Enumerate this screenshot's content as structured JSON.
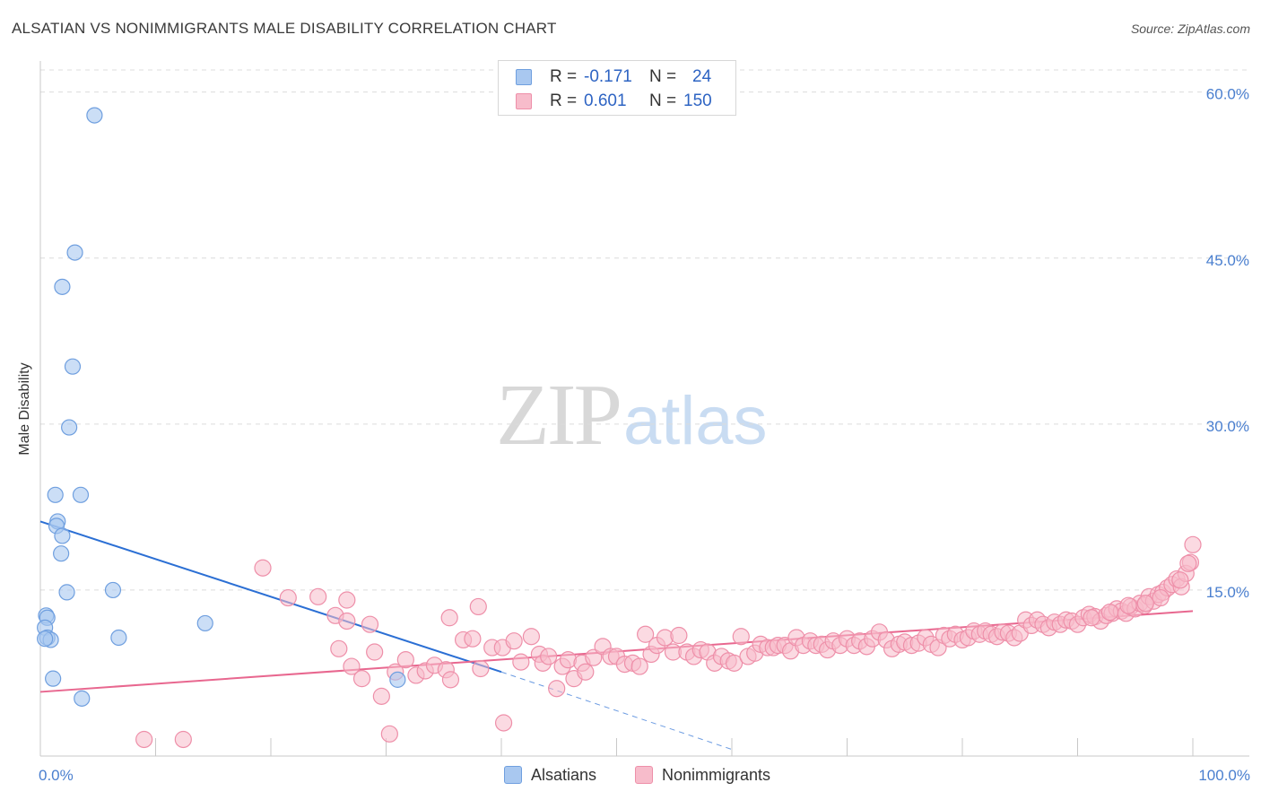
{
  "header": {
    "title": "ALSATIAN VS NONIMMIGRANTS MALE DISABILITY CORRELATION CHART",
    "source": "Source: ZipAtlas.com"
  },
  "watermark": {
    "zip": "ZIP",
    "atlas": "atlas"
  },
  "legend": {
    "rows": [
      {
        "r_label": "R =",
        "r_value": "-0.171",
        "n_label": "N =",
        "n_value": "24"
      },
      {
        "r_label": "R =",
        "r_value": "0.601",
        "n_label": "N =",
        "n_value": "150"
      }
    ],
    "bottom": [
      "Alsatians",
      "Nonimmigrants"
    ]
  },
  "colors": {
    "alsatian_fill": "#a9c8f0",
    "alsatian_stroke": "#6f9fdf",
    "alsatian_line": "#2b6fd4",
    "nonimm_fill": "#f7bccb",
    "nonimm_stroke": "#ee8fa9",
    "nonimm_line": "#e8678f",
    "tick_text": "#4a7fcf",
    "grid": "#dcdcdc"
  },
  "chart_data": {
    "type": "scatter",
    "title": "ALSATIAN VS NONIMMIGRANTS MALE DISABILITY CORRELATION CHART",
    "xlabel": "",
    "ylabel": "Male Disability",
    "xlim": [
      0,
      100
    ],
    "ylim": [
      0,
      62
    ],
    "x_tick_labels": [
      {
        "value": 0,
        "label": "0.0%"
      },
      {
        "value": 100,
        "label": "100.0%"
      }
    ],
    "y_ticks": [
      {
        "value": 15,
        "label": "15.0%"
      },
      {
        "value": 30,
        "label": "30.0%"
      },
      {
        "value": 45,
        "label": "45.0%"
      },
      {
        "value": 60,
        "label": "60.0%"
      }
    ],
    "series": [
      {
        "name": "Alsatians",
        "r": -0.171,
        "n": 24,
        "points": [
          [
            4.7,
            57.9
          ],
          [
            3.0,
            45.5
          ],
          [
            1.9,
            42.4
          ],
          [
            2.8,
            35.2
          ],
          [
            2.5,
            29.7
          ],
          [
            1.3,
            23.6
          ],
          [
            3.5,
            23.6
          ],
          [
            1.5,
            21.2
          ],
          [
            1.4,
            20.8
          ],
          [
            1.9,
            19.9
          ],
          [
            1.8,
            18.3
          ],
          [
            2.3,
            14.8
          ],
          [
            6.3,
            15.0
          ],
          [
            0.5,
            12.7
          ],
          [
            0.6,
            12.5
          ],
          [
            0.4,
            11.6
          ],
          [
            14.3,
            12.0
          ],
          [
            0.6,
            10.7
          ],
          [
            0.9,
            10.5
          ],
          [
            6.8,
            10.7
          ],
          [
            31.0,
            6.9
          ],
          [
            1.1,
            7.0
          ],
          [
            3.6,
            5.2
          ],
          [
            0.4,
            10.6
          ]
        ],
        "trend": {
          "x0": 0,
          "y0": 21.2,
          "x1": 40,
          "y1": 7.6,
          "dashed_to_x": 60,
          "dashed_to_y": 0.6
        }
      },
      {
        "name": "Nonimmigrants",
        "r": 0.601,
        "n": 150,
        "points": [
          [
            9.0,
            1.5
          ],
          [
            12.4,
            1.5
          ],
          [
            19.3,
            17.0
          ],
          [
            21.5,
            14.3
          ],
          [
            24.1,
            14.4
          ],
          [
            26.6,
            14.1
          ],
          [
            25.6,
            12.7
          ],
          [
            26.6,
            12.2
          ],
          [
            28.6,
            11.9
          ],
          [
            25.9,
            9.7
          ],
          [
            27.0,
            8.1
          ],
          [
            27.9,
            7.0
          ],
          [
            29.0,
            9.4
          ],
          [
            29.6,
            5.4
          ],
          [
            30.3,
            2.0
          ],
          [
            30.8,
            7.6
          ],
          [
            31.7,
            8.7
          ],
          [
            32.6,
            7.3
          ],
          [
            33.4,
            7.7
          ],
          [
            34.2,
            8.2
          ],
          [
            35.2,
            7.8
          ],
          [
            35.6,
            6.9
          ],
          [
            35.5,
            12.5
          ],
          [
            36.7,
            10.5
          ],
          [
            37.5,
            10.6
          ],
          [
            38.0,
            13.5
          ],
          [
            38.2,
            7.9
          ],
          [
            39.2,
            9.8
          ],
          [
            40.1,
            9.8
          ],
          [
            40.2,
            3.0
          ],
          [
            41.1,
            10.4
          ],
          [
            41.7,
            8.5
          ],
          [
            42.6,
            10.8
          ],
          [
            43.3,
            9.2
          ],
          [
            43.6,
            8.4
          ],
          [
            44.1,
            9.0
          ],
          [
            44.8,
            6.1
          ],
          [
            45.3,
            8.1
          ],
          [
            45.8,
            8.7
          ],
          [
            46.3,
            7.0
          ],
          [
            47.0,
            8.4
          ],
          [
            47.3,
            7.6
          ],
          [
            48.0,
            8.9
          ],
          [
            48.8,
            9.9
          ],
          [
            49.5,
            9.0
          ],
          [
            50.0,
            9.0
          ],
          [
            50.7,
            8.3
          ],
          [
            51.4,
            8.4
          ],
          [
            52.0,
            8.1
          ],
          [
            52.5,
            11.0
          ],
          [
            53.0,
            9.2
          ],
          [
            53.5,
            10.0
          ],
          [
            54.2,
            10.7
          ],
          [
            54.9,
            9.4
          ],
          [
            55.4,
            10.9
          ],
          [
            56.1,
            9.4
          ],
          [
            56.7,
            9.0
          ],
          [
            57.3,
            9.6
          ],
          [
            57.9,
            9.4
          ],
          [
            58.5,
            8.4
          ],
          [
            59.1,
            9.0
          ],
          [
            59.7,
            8.6
          ],
          [
            60.2,
            8.4
          ],
          [
            60.8,
            10.8
          ],
          [
            61.4,
            9.0
          ],
          [
            62.0,
            9.3
          ],
          [
            62.5,
            10.1
          ],
          [
            63.1,
            9.8
          ],
          [
            63.6,
            9.8
          ],
          [
            64.0,
            10.0
          ],
          [
            64.6,
            10.0
          ],
          [
            65.1,
            9.5
          ],
          [
            65.6,
            10.7
          ],
          [
            66.2,
            10.0
          ],
          [
            66.8,
            10.4
          ],
          [
            67.3,
            10.0
          ],
          [
            67.8,
            10.1
          ],
          [
            68.3,
            9.6
          ],
          [
            68.8,
            10.4
          ],
          [
            69.4,
            10.0
          ],
          [
            70.0,
            10.6
          ],
          [
            70.6,
            10.0
          ],
          [
            71.1,
            10.4
          ],
          [
            71.7,
            9.9
          ],
          [
            72.2,
            10.6
          ],
          [
            72.8,
            11.2
          ],
          [
            73.4,
            10.5
          ],
          [
            73.9,
            9.7
          ],
          [
            74.5,
            10.1
          ],
          [
            75.0,
            10.3
          ],
          [
            75.6,
            10.0
          ],
          [
            76.2,
            10.2
          ],
          [
            76.8,
            10.7
          ],
          [
            77.3,
            10.1
          ],
          [
            77.9,
            9.8
          ],
          [
            78.4,
            10.9
          ],
          [
            78.9,
            10.6
          ],
          [
            79.4,
            11.0
          ],
          [
            80.0,
            10.5
          ],
          [
            80.5,
            10.7
          ],
          [
            81.0,
            11.3
          ],
          [
            81.5,
            11.0
          ],
          [
            82.0,
            11.3
          ],
          [
            82.5,
            11.0
          ],
          [
            83.0,
            10.8
          ],
          [
            83.5,
            11.2
          ],
          [
            84.0,
            11.1
          ],
          [
            84.5,
            10.7
          ],
          [
            85.0,
            11.1
          ],
          [
            85.5,
            12.3
          ],
          [
            86.0,
            11.8
          ],
          [
            86.5,
            12.3
          ],
          [
            87.0,
            11.9
          ],
          [
            87.5,
            11.6
          ],
          [
            88.0,
            12.1
          ],
          [
            88.5,
            11.9
          ],
          [
            89.0,
            12.3
          ],
          [
            89.5,
            12.2
          ],
          [
            90.0,
            11.9
          ],
          [
            90.5,
            12.5
          ],
          [
            91.0,
            12.8
          ],
          [
            91.5,
            12.6
          ],
          [
            92.0,
            12.2
          ],
          [
            92.5,
            12.7
          ],
          [
            93.0,
            12.9
          ],
          [
            93.4,
            13.3
          ],
          [
            93.8,
            13.1
          ],
          [
            94.2,
            12.9
          ],
          [
            94.6,
            13.5
          ],
          [
            95.0,
            13.3
          ],
          [
            95.4,
            13.8
          ],
          [
            95.8,
            13.6
          ],
          [
            96.2,
            14.4
          ],
          [
            96.6,
            14.0
          ],
          [
            97.0,
            14.6
          ],
          [
            97.4,
            14.8
          ],
          [
            97.8,
            15.2
          ],
          [
            98.2,
            15.5
          ],
          [
            98.6,
            16.0
          ],
          [
            99.0,
            15.3
          ],
          [
            99.4,
            16.5
          ],
          [
            99.8,
            17.5
          ],
          [
            100.0,
            19.1
          ],
          [
            99.6,
            17.4
          ],
          [
            98.9,
            15.9
          ],
          [
            97.2,
            14.3
          ],
          [
            95.9,
            13.8
          ],
          [
            94.4,
            13.6
          ],
          [
            92.8,
            13.0
          ],
          [
            91.2,
            12.5
          ]
        ],
        "trend": {
          "x0": 0,
          "y0": 5.8,
          "x1": 100,
          "y1": 13.1
        }
      }
    ]
  }
}
